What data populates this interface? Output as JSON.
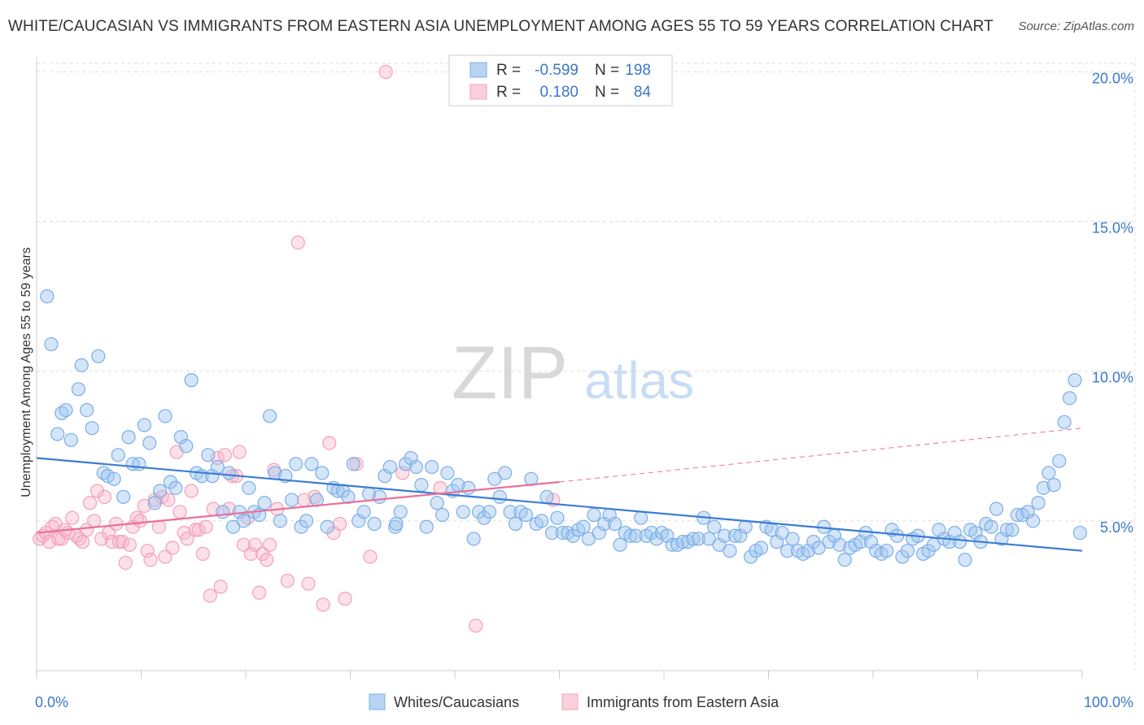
{
  "title": "WHITE/CAUCASIAN VS IMMIGRANTS FROM EASTERN ASIA UNEMPLOYMENT AMONG AGES 55 TO 59 YEARS CORRELATION CHART",
  "source": "Source: ZipAtlas.com",
  "watermark": {
    "zip": "ZIP",
    "atlas": "atlas"
  },
  "colors": {
    "blue": "#7aaee8",
    "blue_line": "#3a7bd5",
    "pink": "#f4a0b8",
    "pink_line": "#e8709a",
    "axis_text": "#3a78c9",
    "grid": "#dddddd"
  },
  "legend_top": {
    "r_label": "R =",
    "n_label": "N =",
    "rows": [
      {
        "r": "-0.599",
        "n": "198"
      },
      {
        "r": "0.180",
        "n": "84"
      }
    ]
  },
  "legend_bottom": [
    "Whites/Caucasians",
    "Immigrants from Eastern Asia"
  ],
  "chart_data": {
    "type": "scatter",
    "title": "WHITE/CAUCASIAN VS IMMIGRANTS FROM EASTERN ASIA UNEMPLOYMENT AMONG AGES 55 TO 59 YEARS CORRELATION CHART",
    "xlabel": "",
    "ylabel": "Unemployment Among Ages 55 to 59 years",
    "xlim": [
      0,
      100
    ],
    "ylim": [
      0,
      20.5
    ],
    "x_ticks": [
      "0.0%",
      "100.0%"
    ],
    "y_ticks": [
      {
        "value": 5,
        "label": "5.0%"
      },
      {
        "value": 10,
        "label": "10.0%"
      },
      {
        "value": 15,
        "label": "15.0%"
      },
      {
        "value": 20,
        "label": "20.0%"
      }
    ],
    "grid": true,
    "legend_position": "bottom",
    "series": [
      {
        "name": "Whites/Caucasians",
        "r": -0.599,
        "n": 198,
        "trend": {
          "x0": 0,
          "y0": 7.1,
          "x1": 100,
          "y1": 4.0
        },
        "points": [
          [
            1,
            12.5
          ],
          [
            1.4,
            10.9
          ],
          [
            2,
            7.9
          ],
          [
            2.4,
            8.6
          ],
          [
            2.8,
            8.7
          ],
          [
            3.3,
            7.7
          ],
          [
            4,
            9.4
          ],
          [
            4.3,
            10.2
          ],
          [
            4.8,
            8.7
          ],
          [
            5.3,
            8.1
          ],
          [
            5.9,
            10.5
          ],
          [
            6.4,
            6.6
          ],
          [
            6.8,
            6.5
          ],
          [
            7.4,
            6.4
          ],
          [
            7.8,
            7.2
          ],
          [
            8.3,
            5.8
          ],
          [
            8.8,
            7.8
          ],
          [
            9.2,
            6.9
          ],
          [
            9.8,
            6.9
          ],
          [
            10.3,
            8.2
          ],
          [
            10.8,
            7.6
          ],
          [
            11.3,
            5.6
          ],
          [
            11.8,
            6.0
          ],
          [
            12.3,
            8.5
          ],
          [
            12.8,
            6.3
          ],
          [
            13.3,
            6.1
          ],
          [
            13.8,
            7.8
          ],
          [
            14.3,
            7.5
          ],
          [
            14.8,
            9.7
          ],
          [
            15.3,
            6.6
          ],
          [
            15.8,
            6.5
          ],
          [
            16.4,
            7.2
          ],
          [
            16.8,
            6.5
          ],
          [
            17.3,
            6.8
          ],
          [
            17.8,
            5.3
          ],
          [
            18.4,
            6.6
          ],
          [
            18.8,
            4.8
          ],
          [
            19.4,
            5.3
          ],
          [
            19.8,
            5.0
          ],
          [
            20.3,
            6.1
          ],
          [
            20.8,
            5.3
          ],
          [
            21.3,
            5.2
          ],
          [
            21.8,
            5.6
          ],
          [
            22.3,
            8.5
          ],
          [
            22.8,
            6.6
          ],
          [
            23.3,
            5.0
          ],
          [
            23.8,
            6.5
          ],
          [
            24.4,
            5.7
          ],
          [
            24.8,
            6.9
          ],
          [
            25.3,
            4.8
          ],
          [
            25.8,
            5.0
          ],
          [
            26.3,
            6.9
          ],
          [
            26.8,
            5.7
          ],
          [
            27.3,
            6.6
          ],
          [
            27.8,
            4.8
          ],
          [
            28.4,
            6.1
          ],
          [
            28.8,
            6.0
          ],
          [
            29.3,
            6.0
          ],
          [
            29.8,
            5.8
          ],
          [
            30.3,
            6.9
          ],
          [
            30.8,
            5.0
          ],
          [
            31.3,
            5.3
          ],
          [
            31.8,
            5.9
          ],
          [
            32.3,
            4.9
          ],
          [
            32.8,
            5.8
          ],
          [
            33.3,
            6.5
          ],
          [
            33.8,
            6.8
          ],
          [
            34.3,
            4.8
          ],
          [
            34.4,
            4.9
          ],
          [
            34.8,
            5.3
          ],
          [
            35.3,
            6.9
          ],
          [
            35.8,
            7.1
          ],
          [
            36.3,
            6.8
          ],
          [
            36.8,
            6.2
          ],
          [
            37.3,
            4.8
          ],
          [
            37.8,
            6.8
          ],
          [
            38.3,
            5.6
          ],
          [
            38.8,
            5.2
          ],
          [
            39.3,
            6.6
          ],
          [
            39.8,
            6.0
          ],
          [
            40.3,
            6.2
          ],
          [
            40.8,
            5.3
          ],
          [
            41.3,
            6.1
          ],
          [
            41.8,
            4.4
          ],
          [
            42.3,
            5.3
          ],
          [
            42.8,
            5.1
          ],
          [
            43.3,
            5.3
          ],
          [
            43.8,
            6.4
          ],
          [
            44.3,
            5.8
          ],
          [
            44.8,
            6.6
          ],
          [
            45.3,
            5.3
          ],
          [
            45.8,
            4.9
          ],
          [
            46.3,
            5.3
          ],
          [
            46.8,
            5.2
          ],
          [
            47.3,
            6.4
          ],
          [
            47.8,
            4.9
          ],
          [
            48.3,
            5.0
          ],
          [
            48.8,
            5.8
          ],
          [
            49.3,
            4.6
          ],
          [
            49.8,
            5.1
          ],
          [
            50.3,
            4.6
          ],
          [
            50.8,
            4.6
          ],
          [
            51.3,
            4.5
          ],
          [
            51.8,
            4.7
          ],
          [
            52.3,
            4.8
          ],
          [
            52.8,
            4.4
          ],
          [
            53.3,
            5.2
          ],
          [
            53.8,
            4.6
          ],
          [
            54.3,
            4.9
          ],
          [
            54.8,
            5.2
          ],
          [
            55.3,
            4.9
          ],
          [
            55.8,
            4.2
          ],
          [
            56.3,
            4.6
          ],
          [
            56.8,
            4.5
          ],
          [
            57.3,
            4.5
          ],
          [
            57.8,
            5.1
          ],
          [
            58.3,
            4.5
          ],
          [
            58.8,
            4.6
          ],
          [
            59.3,
            4.4
          ],
          [
            59.8,
            4.6
          ],
          [
            60.3,
            4.5
          ],
          [
            60.8,
            4.2
          ],
          [
            61.3,
            4.2
          ],
          [
            61.8,
            4.3
          ],
          [
            62.3,
            4.3
          ],
          [
            62.8,
            4.4
          ],
          [
            63.3,
            4.4
          ],
          [
            63.8,
            5.1
          ],
          [
            64.3,
            4.4
          ],
          [
            64.8,
            4.8
          ],
          [
            65.3,
            4.2
          ],
          [
            65.8,
            4.5
          ],
          [
            66.3,
            4.0
          ],
          [
            66.8,
            4.5
          ],
          [
            67.3,
            4.5
          ],
          [
            67.8,
            4.8
          ],
          [
            68.3,
            3.8
          ],
          [
            68.8,
            4.0
          ],
          [
            69.3,
            4.1
          ],
          [
            69.8,
            4.8
          ],
          [
            70.3,
            4.7
          ],
          [
            70.8,
            4.3
          ],
          [
            71.3,
            4.6
          ],
          [
            71.8,
            4.0
          ],
          [
            72.3,
            4.4
          ],
          [
            72.8,
            4.0
          ],
          [
            73.3,
            3.9
          ],
          [
            73.8,
            4.0
          ],
          [
            74.3,
            4.3
          ],
          [
            74.8,
            4.1
          ],
          [
            75.3,
            4.8
          ],
          [
            75.8,
            4.3
          ],
          [
            76.3,
            4.5
          ],
          [
            76.8,
            4.2
          ],
          [
            77.3,
            3.7
          ],
          [
            77.8,
            4.1
          ],
          [
            78.3,
            4.2
          ],
          [
            78.8,
            4.3
          ],
          [
            79.3,
            4.6
          ],
          [
            79.8,
            4.3
          ],
          [
            80.3,
            4.0
          ],
          [
            80.8,
            3.9
          ],
          [
            81.3,
            4.0
          ],
          [
            81.8,
            4.7
          ],
          [
            82.3,
            4.5
          ],
          [
            82.8,
            3.8
          ],
          [
            83.3,
            4.0
          ],
          [
            83.8,
            4.4
          ],
          [
            84.3,
            4.5
          ],
          [
            84.8,
            3.9
          ],
          [
            85.3,
            4.0
          ],
          [
            85.8,
            4.2
          ],
          [
            86.3,
            4.7
          ],
          [
            86.8,
            4.4
          ],
          [
            87.3,
            4.3
          ],
          [
            87.8,
            4.6
          ],
          [
            88.3,
            4.3
          ],
          [
            88.8,
            3.7
          ],
          [
            89.3,
            4.7
          ],
          [
            89.8,
            4.6
          ],
          [
            90.3,
            4.3
          ],
          [
            90.8,
            4.9
          ],
          [
            91.3,
            4.8
          ],
          [
            91.8,
            5.4
          ],
          [
            92.3,
            4.4
          ],
          [
            92.8,
            4.7
          ],
          [
            93.3,
            4.7
          ],
          [
            93.8,
            5.2
          ],
          [
            94.3,
            5.2
          ],
          [
            94.8,
            5.3
          ],
          [
            95.3,
            5.0
          ],
          [
            95.8,
            5.6
          ],
          [
            96.3,
            6.1
          ],
          [
            96.8,
            6.6
          ],
          [
            97.3,
            6.2
          ],
          [
            97.8,
            7.0
          ],
          [
            98.3,
            8.3
          ],
          [
            98.8,
            9.1
          ],
          [
            99.3,
            9.7
          ],
          [
            99.8,
            4.6
          ]
        ]
      },
      {
        "name": "Immigrants from Eastern Asia",
        "r": 0.18,
        "n": 84,
        "trend": {
          "x0": 0,
          "y0": 4.6,
          "x1": 50,
          "y1": 6.3,
          "x_end": 100,
          "y_end": 8.1
        },
        "points": [
          [
            0.3,
            4.4
          ],
          [
            0.6,
            4.5
          ],
          [
            0.9,
            4.6
          ],
          [
            1.2,
            4.3
          ],
          [
            1.5,
            4.8
          ],
          [
            1.8,
            4.9
          ],
          [
            2.1,
            4.4
          ],
          [
            2.4,
            4.4
          ],
          [
            2.7,
            4.7
          ],
          [
            3.0,
            4.6
          ],
          [
            3.4,
            5.1
          ],
          [
            3.8,
            4.5
          ],
          [
            4.1,
            4.4
          ],
          [
            4.4,
            4.3
          ],
          [
            4.8,
            4.7
          ],
          [
            5.1,
            5.6
          ],
          [
            5.5,
            5.0
          ],
          [
            5.8,
            6.0
          ],
          [
            6.2,
            4.4
          ],
          [
            6.5,
            5.8
          ],
          [
            6.9,
            4.6
          ],
          [
            7.2,
            4.3
          ],
          [
            7.6,
            4.9
          ],
          [
            7.9,
            4.3
          ],
          [
            8.2,
            4.3
          ],
          [
            8.5,
            3.6
          ],
          [
            8.9,
            4.2
          ],
          [
            9.2,
            4.8
          ],
          [
            9.6,
            5.1
          ],
          [
            9.9,
            5.0
          ],
          [
            10.3,
            5.5
          ],
          [
            10.6,
            4.0
          ],
          [
            10.9,
            3.7
          ],
          [
            11.3,
            5.7
          ],
          [
            11.7,
            4.8
          ],
          [
            12.0,
            5.8
          ],
          [
            12.3,
            3.8
          ],
          [
            12.6,
            5.7
          ],
          [
            13.0,
            4.1
          ],
          [
            13.4,
            7.3
          ],
          [
            13.7,
            5.3
          ],
          [
            14.1,
            4.6
          ],
          [
            14.4,
            4.4
          ],
          [
            14.8,
            6.0
          ],
          [
            15.2,
            4.7
          ],
          [
            15.5,
            4.7
          ],
          [
            15.9,
            3.9
          ],
          [
            16.2,
            4.8
          ],
          [
            16.6,
            2.5
          ],
          [
            16.9,
            5.4
          ],
          [
            17.3,
            7.1
          ],
          [
            17.6,
            2.8
          ],
          [
            18.0,
            7.2
          ],
          [
            18.4,
            5.4
          ],
          [
            18.7,
            6.5
          ],
          [
            19.1,
            6.5
          ],
          [
            19.4,
            7.3
          ],
          [
            19.8,
            4.2
          ],
          [
            20.2,
            5.1
          ],
          [
            20.5,
            3.9
          ],
          [
            20.9,
            4.2
          ],
          [
            21.3,
            2.6
          ],
          [
            21.6,
            3.9
          ],
          [
            22.0,
            3.7
          ],
          [
            22.3,
            4.2
          ],
          [
            22.7,
            6.7
          ],
          [
            23.0,
            5.4
          ],
          [
            24.0,
            3.0
          ],
          [
            25.0,
            14.3
          ],
          [
            25.6,
            5.7
          ],
          [
            26.0,
            2.9
          ],
          [
            26.6,
            5.8
          ],
          [
            27.4,
            2.2
          ],
          [
            28.0,
            7.6
          ],
          [
            28.4,
            4.6
          ],
          [
            29.0,
            4.9
          ],
          [
            29.5,
            2.4
          ],
          [
            30.6,
            6.9
          ],
          [
            31.9,
            3.8
          ],
          [
            33.4,
            20.0
          ],
          [
            35.0,
            6.6
          ],
          [
            38.6,
            6.1
          ],
          [
            42.0,
            1.5
          ],
          [
            49.4,
            5.7
          ]
        ]
      }
    ]
  }
}
